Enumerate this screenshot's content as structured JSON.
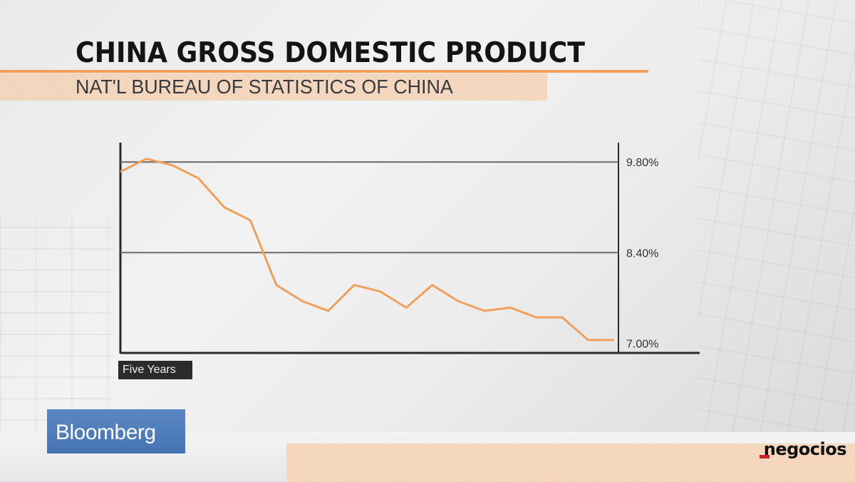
{
  "header": {
    "title": "CHINA GROSS DOMESTIC PRODUCT",
    "subtitle": "NAT'L BUREAU OF STATISTICS OF CHINA"
  },
  "chart_data": {
    "type": "line",
    "period_label": "Five Years",
    "y_ticks": [
      9.8,
      8.4,
      7.0
    ],
    "y_tick_labels": [
      "9.80%",
      "8.40%",
      "7.00%"
    ],
    "ylim": [
      6.85,
      10.1
    ],
    "grid": true,
    "y_axis_position": "right",
    "line_color": "#f0a05a",
    "series": [
      {
        "values": [
          9.65,
          9.85,
          9.75,
          9.55,
          9.1,
          8.9,
          7.9,
          7.65,
          7.5,
          7.9,
          7.8,
          7.55,
          7.9,
          7.65,
          7.5,
          7.55,
          7.4,
          7.4,
          7.05,
          7.05
        ]
      }
    ]
  },
  "branding": {
    "broadcaster": "Bloomberg",
    "site_logo": "negocios",
    "logo_accent": "#d11f26"
  }
}
